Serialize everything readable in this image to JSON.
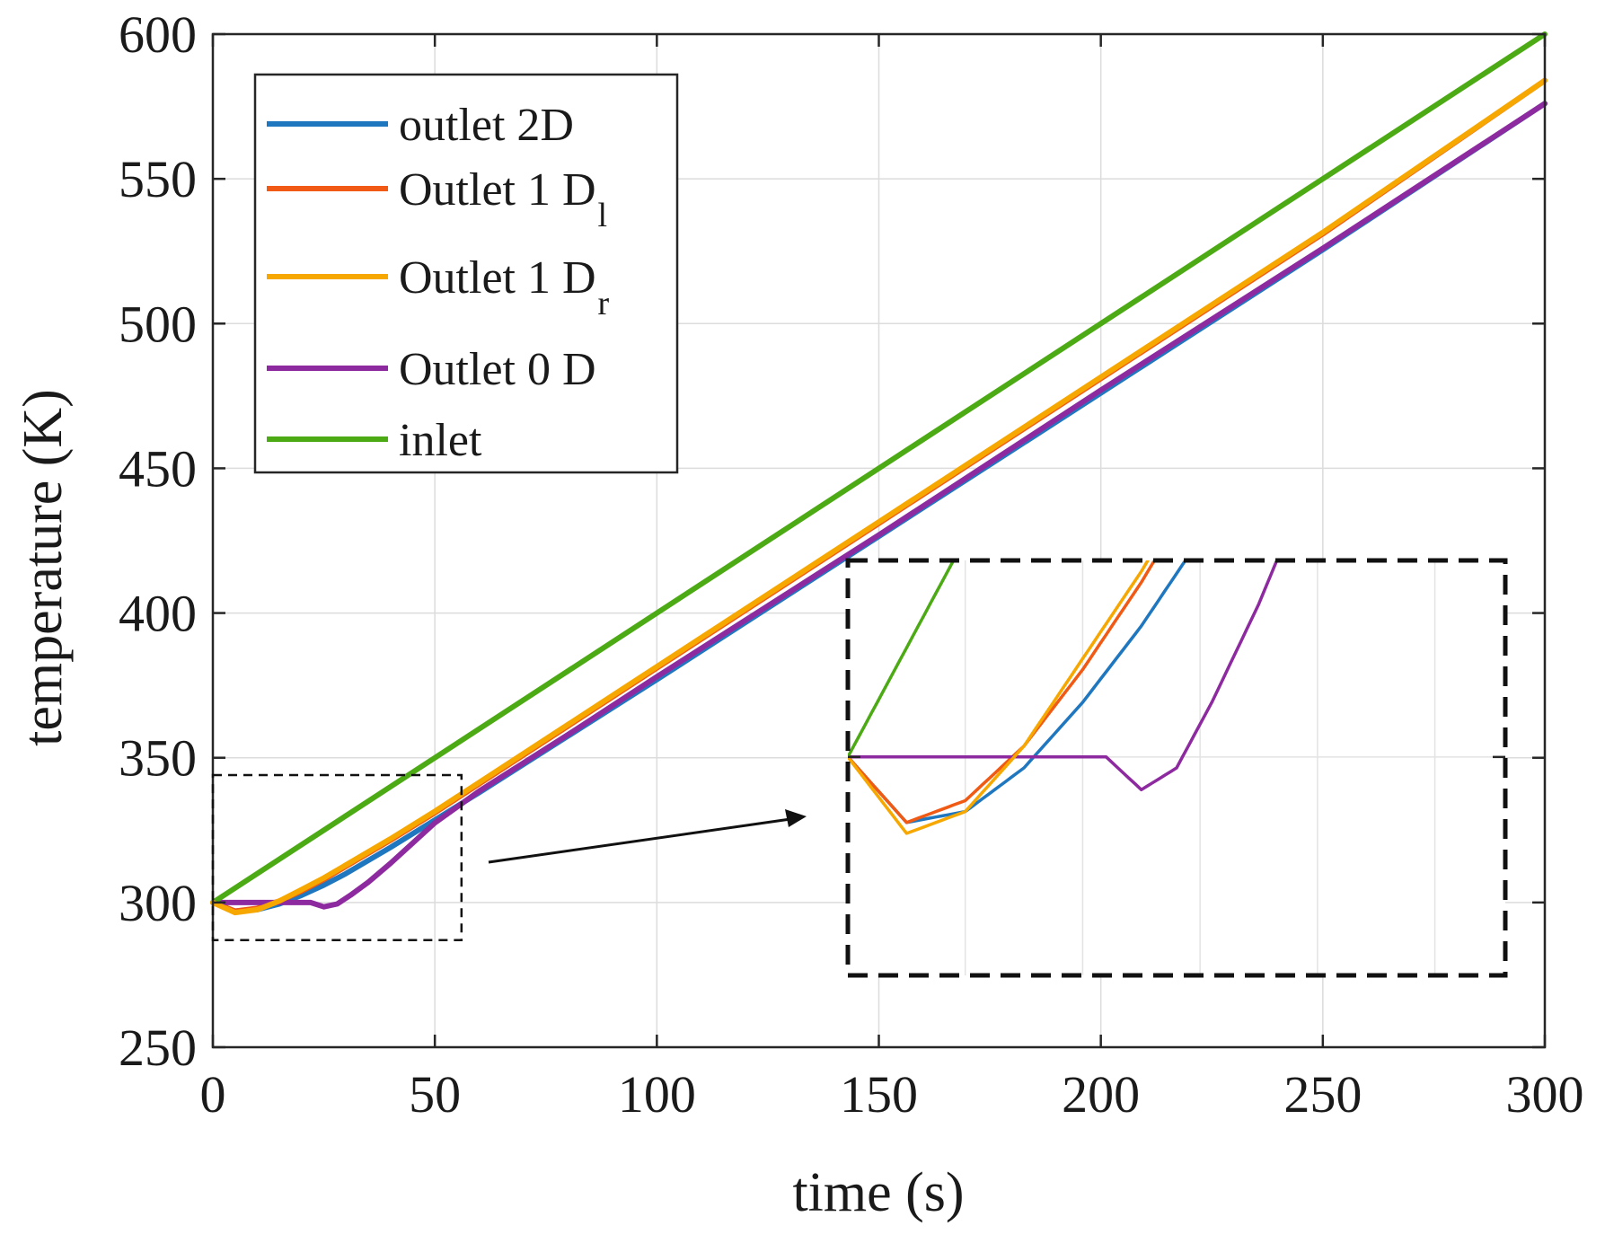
{
  "chart_data": {
    "type": "line",
    "title": "",
    "xlabel": "time (s)",
    "ylabel": "temperature (K)",
    "xlim": [
      0,
      300
    ],
    "ylim": [
      250,
      600
    ],
    "xticks": [
      "0",
      "50",
      "100",
      "150",
      "200",
      "250",
      "300"
    ],
    "yticks": [
      "250",
      "300",
      "350",
      "400",
      "450",
      "500",
      "550",
      "600"
    ],
    "grid": true,
    "legend_position": "top-left",
    "series": [
      {
        "name": "outlet 2D",
        "label_main": "outlet 2D",
        "label_sub": "",
        "color": "#1f77c0",
        "x": [
          0,
          5,
          10,
          15,
          20,
          25,
          30,
          35,
          40,
          50,
          60,
          80,
          100,
          150,
          200,
          250,
          300
        ],
        "y": [
          300,
          297,
          297.5,
          299.5,
          302.5,
          306,
          310,
          314.5,
          319,
          328.5,
          338,
          357.5,
          377,
          426.5,
          476,
          525.5,
          576
        ]
      },
      {
        "name": "Outlet 1 Dl",
        "label_main": "Outlet 1 D",
        "label_sub": "l",
        "color": "#f05a14",
        "x": [
          0,
          5,
          10,
          15,
          20,
          25,
          30,
          35,
          40,
          50,
          60,
          80,
          100,
          150,
          200,
          250,
          300
        ],
        "y": [
          300,
          297,
          298,
          300.5,
          304,
          308,
          312.5,
          317,
          321.5,
          331,
          341,
          361,
          381,
          431,
          481,
          531,
          584
        ]
      },
      {
        "name": "Outlet 1 Dr",
        "label_main": "Outlet 1 D",
        "label_sub": "r",
        "color": "#f7a800",
        "x": [
          0,
          5,
          10,
          15,
          20,
          25,
          30,
          35,
          40,
          50,
          60,
          80,
          100,
          150,
          200,
          250,
          300
        ],
        "y": [
          300,
          296.5,
          297.5,
          300.5,
          304.5,
          308.5,
          313,
          317.5,
          322,
          331.5,
          341.5,
          361.5,
          381.5,
          431.5,
          481.5,
          531.5,
          584
        ]
      },
      {
        "name": "Outlet 0 D",
        "label_main": "Outlet 0 D",
        "label_sub": "",
        "color": "#8e2aa0",
        "x": [
          0,
          10,
          20,
          22,
          25,
          28,
          31,
          35,
          40,
          45,
          50,
          60,
          80,
          100,
          150,
          200,
          250,
          300
        ],
        "y": [
          300,
          300,
          300,
          300,
          298.5,
          299.5,
          302.5,
          307,
          313.5,
          320.5,
          327.5,
          338.5,
          358,
          378,
          427,
          477,
          526,
          576
        ]
      },
      {
        "name": "inlet",
        "label_main": "inlet",
        "label_sub": "",
        "color": "#4caa14",
        "x": [
          0,
          300
        ],
        "y": [
          300,
          600
        ]
      }
    ],
    "zoom": {
      "xlim": [
        0,
        56
      ],
      "ylim": [
        287,
        344
      ]
    },
    "annotations": [
      "dashed box around the t = 0–55 s region with an arrow pointing to an enlarged inset view"
    ]
  }
}
